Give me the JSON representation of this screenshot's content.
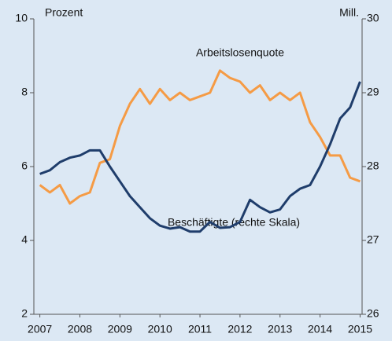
{
  "chart_data": {
    "type": "line",
    "annotations": [
      "Prozent",
      "Mill.",
      "Arbeitslosenquote",
      "Beschäftigte (rechte Skala)"
    ],
    "x": [
      2007,
      2007.25,
      2007.5,
      2007.75,
      2008,
      2008.25,
      2008.5,
      2008.75,
      2009,
      2009.25,
      2009.5,
      2009.75,
      2010,
      2010.25,
      2010.5,
      2010.75,
      2011,
      2011.25,
      2011.5,
      2011.75,
      2012,
      2012.25,
      2012.5,
      2012.75,
      2013,
      2013.25,
      2013.5,
      2013.75,
      2014,
      2014.25,
      2014.5,
      2014.75,
      2015
    ],
    "xlim": [
      2006.85,
      2015.05
    ],
    "xticks": [
      2007,
      2008,
      2009,
      2010,
      2011,
      2012,
      2013,
      2014,
      2015
    ],
    "ylim": [
      2,
      10
    ],
    "yticks": [
      2,
      4,
      6,
      8,
      10
    ],
    "y2lim": [
      26,
      30
    ],
    "y2ticks": [
      26,
      27,
      28,
      29,
      30
    ],
    "series": [
      {
        "name": "Arbeitslosenquote",
        "color": "#f59b45",
        "values": [
          5.5,
          5.3,
          5.5,
          5.0,
          5.2,
          5.3,
          6.1,
          6.2,
          7.1,
          7.7,
          8.1,
          7.7,
          8.1,
          7.8,
          8.0,
          7.8,
          7.9,
          8.0,
          8.6,
          8.4,
          8.3,
          8.0,
          8.2,
          7.8,
          8.0,
          7.8,
          8.0,
          7.2,
          6.8,
          6.3,
          6.3,
          5.7,
          5.6
        ]
      },
      {
        "name": "Beschäftigte (rechte Skala)",
        "color": "#1f3d6b",
        "axis": "y2",
        "values": [
          27.9,
          27.95,
          28.06,
          28.12,
          28.15,
          28.22,
          28.22,
          28.0,
          27.8,
          27.6,
          27.45,
          27.3,
          27.2,
          27.16,
          27.18,
          27.12,
          27.12,
          27.25,
          27.17,
          27.18,
          27.25,
          27.55,
          27.45,
          27.38,
          27.42,
          27.6,
          27.7,
          27.75,
          28.0,
          28.3,
          28.65,
          28.8,
          29.15
        ]
      }
    ]
  }
}
